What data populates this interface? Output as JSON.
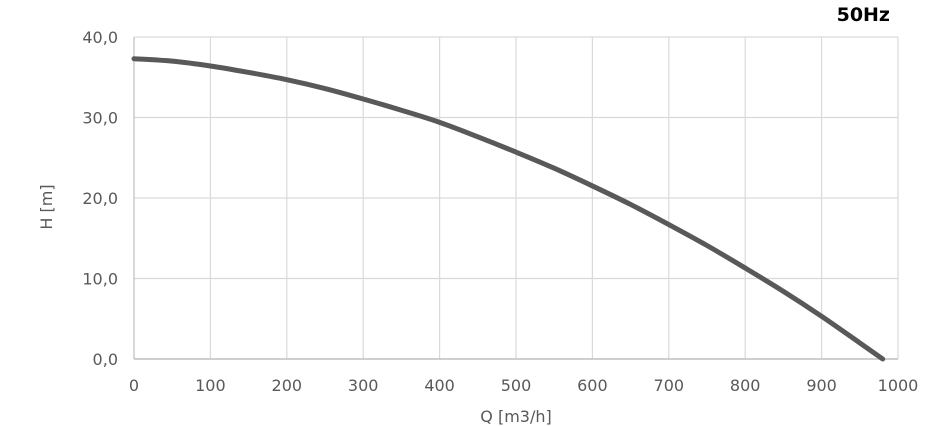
{
  "frequency_label": "50Hz",
  "colors": {
    "curve": "#595959",
    "grid": "#d9d9d9",
    "axis": "#bfbfbf",
    "text": "#595959"
  },
  "chart_data": {
    "type": "line",
    "title": "",
    "xlabel": "Q [m3/h]",
    "ylabel": "H [m]",
    "xlim": [
      0,
      1000
    ],
    "ylim": [
      0,
      40
    ],
    "grid": true,
    "x_ticks": [
      {
        "value": 0,
        "label": "0"
      },
      {
        "value": 100,
        "label": "100"
      },
      {
        "value": 200,
        "label": "200"
      },
      {
        "value": 300,
        "label": "300"
      },
      {
        "value": 400,
        "label": "400"
      },
      {
        "value": 500,
        "label": "500"
      },
      {
        "value": 600,
        "label": "600"
      },
      {
        "value": 700,
        "label": "700"
      },
      {
        "value": 800,
        "label": "800"
      },
      {
        "value": 900,
        "label": "900"
      },
      {
        "value": 1000,
        "label": "1000"
      }
    ],
    "y_ticks": [
      {
        "value": 0,
        "label": "0,0"
      },
      {
        "value": 10,
        "label": "10,0"
      },
      {
        "value": 20,
        "label": "20,0"
      },
      {
        "value": 30,
        "label": "30,0"
      },
      {
        "value": 40,
        "label": "40,0"
      }
    ],
    "series": [
      {
        "x": [
          0,
          50,
          100,
          150,
          200,
          250,
          300,
          350,
          400,
          450,
          500,
          550,
          600,
          650,
          700,
          750,
          800,
          850,
          900,
          950,
          980
        ],
        "y": [
          37.3,
          37.0,
          36.4,
          35.6,
          34.7,
          33.6,
          32.3,
          30.9,
          29.4,
          27.6,
          25.7,
          23.7,
          21.5,
          19.2,
          16.7,
          14.1,
          11.3,
          8.4,
          5.3,
          2.0,
          0.0
        ]
      }
    ]
  }
}
